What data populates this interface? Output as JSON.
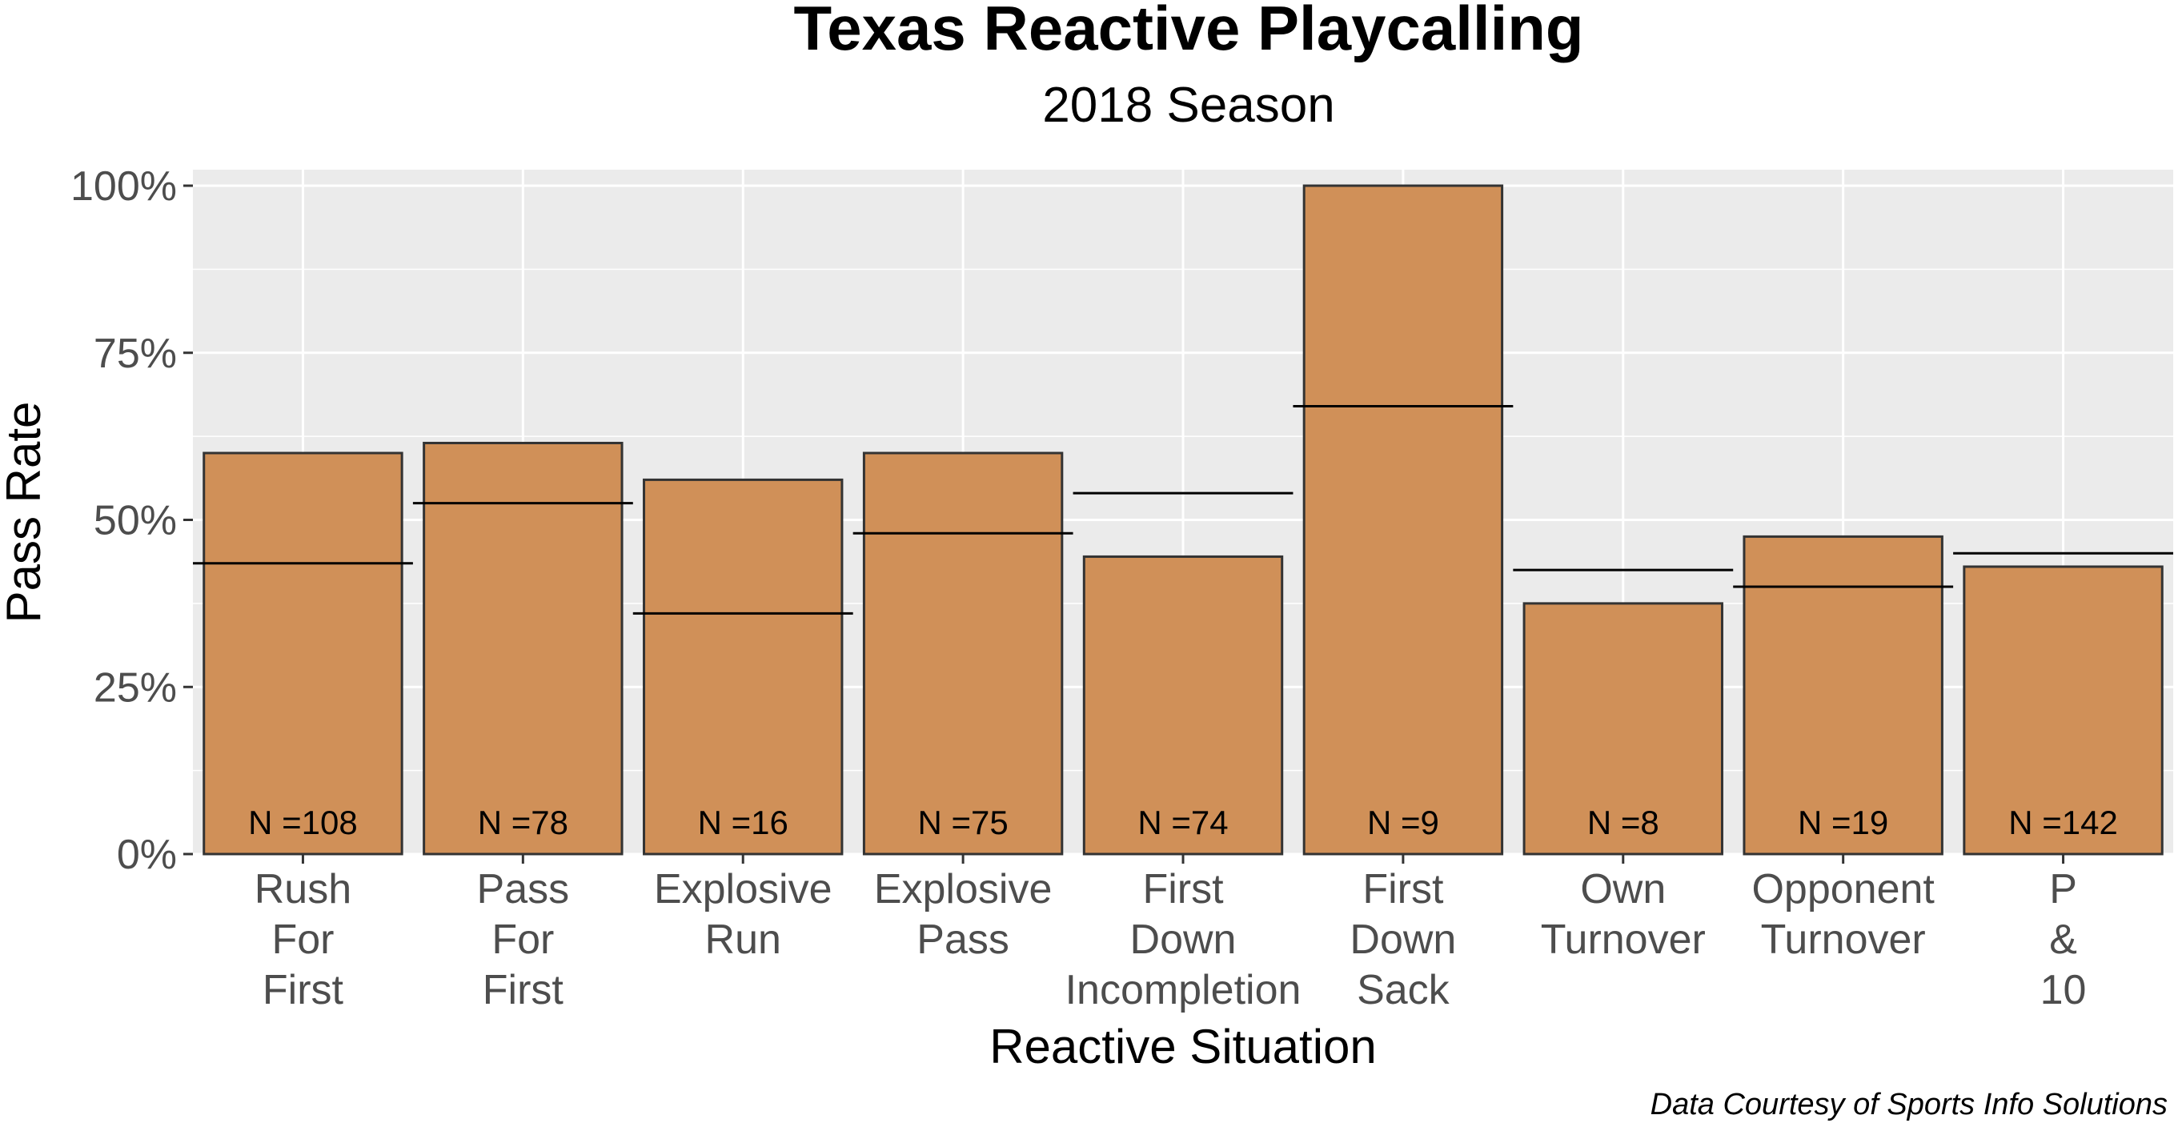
{
  "chart_data": {
    "type": "bar",
    "title": "Texas Reactive Playcalling",
    "subtitle": "2018 Season",
    "xlabel": "Reactive Situation",
    "ylabel": "Pass Rate",
    "caption": "Data Courtesy of Sports Info Solutions",
    "ylim": [
      0,
      1
    ],
    "y_ticks": [
      0,
      0.25,
      0.5,
      0.75,
      1.0
    ],
    "y_tick_labels": [
      "0%",
      "25%",
      "50%",
      "75%",
      "100%"
    ],
    "categories": [
      [
        "Rush",
        "For",
        "First"
      ],
      [
        "Pass",
        "For",
        "First"
      ],
      [
        "Explosive",
        "Run"
      ],
      [
        "Explosive",
        "Pass"
      ],
      [
        "First",
        "Down",
        "Incompletion"
      ],
      [
        "First",
        "Down",
        "Sack"
      ],
      [
        "Own",
        "Turnover"
      ],
      [
        "Opponent",
        "Turnover"
      ],
      [
        "P",
        "&",
        "10"
      ]
    ],
    "series": [
      {
        "values": [
          0.6,
          0.615,
          0.56,
          0.6,
          0.445,
          1.0,
          0.375,
          0.475,
          0.43
        ]
      }
    ],
    "reference_lines": [
      0.435,
      0.525,
      0.36,
      0.48,
      0.54,
      0.67,
      0.425,
      0.4,
      0.45
    ],
    "n_labels": [
      "N =108",
      "N =78",
      "N =16",
      "N =75",
      "N =74",
      "N =9",
      "N =8",
      "N =19",
      "N =142"
    ],
    "grid": true,
    "colors": {
      "bar_fill": "#D09058",
      "bar_stroke": "#333333",
      "panel_bg": "#EBEBEB",
      "grid": "#FFFFFF",
      "ref_line": "#000000"
    }
  }
}
